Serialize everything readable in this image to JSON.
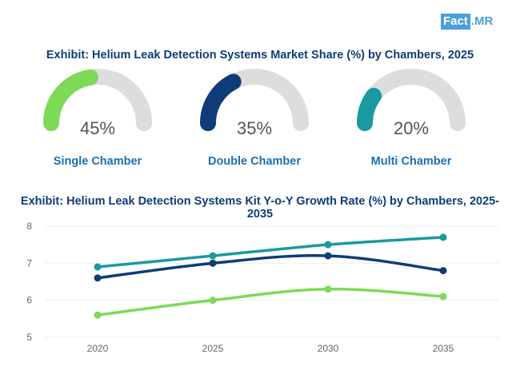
{
  "logo": {
    "part1": "Fact",
    "part2": ".MR"
  },
  "colors": {
    "title": "#0f3c78",
    "label": "#1a6fb5",
    "track": "#dddddd"
  },
  "chart_data": [
    {
      "type": "gauge",
      "title": "Exhibit: Helium Leak Detection Systems Market Share (%) by Chambers, 2025",
      "items": [
        {
          "label": "Single Chamber",
          "value": 45,
          "display": "45%",
          "color": "#7ed957"
        },
        {
          "label": "Double Chamber",
          "value": 35,
          "display": "35%",
          "color": "#0f3c78"
        },
        {
          "label": "Multi Chamber",
          "value": 20,
          "display": "20%",
          "color": "#1a9aa0"
        }
      ]
    },
    {
      "type": "line",
      "title": "Exhibit: Helium Leak Detection Systems Kit Y-o-Y Growth Rate (%) by Chambers, 2025-2035",
      "x": [
        "2020",
        "2025",
        "2030",
        "2035"
      ],
      "yticks": [
        "5",
        "6",
        "7",
        "8"
      ],
      "ylim": [
        5,
        8
      ],
      "grid": true,
      "series": [
        {
          "name": "Multi Chamber",
          "color": "#1a9aa0",
          "values": [
            6.9,
            7.2,
            7.5,
            7.7
          ]
        },
        {
          "name": "Double Chamber",
          "color": "#0f3c78",
          "values": [
            6.6,
            7.0,
            7.2,
            6.8
          ]
        },
        {
          "name": "Single Chamber",
          "color": "#7ed957",
          "values": [
            5.6,
            6.0,
            6.3,
            6.1
          ]
        }
      ]
    }
  ]
}
